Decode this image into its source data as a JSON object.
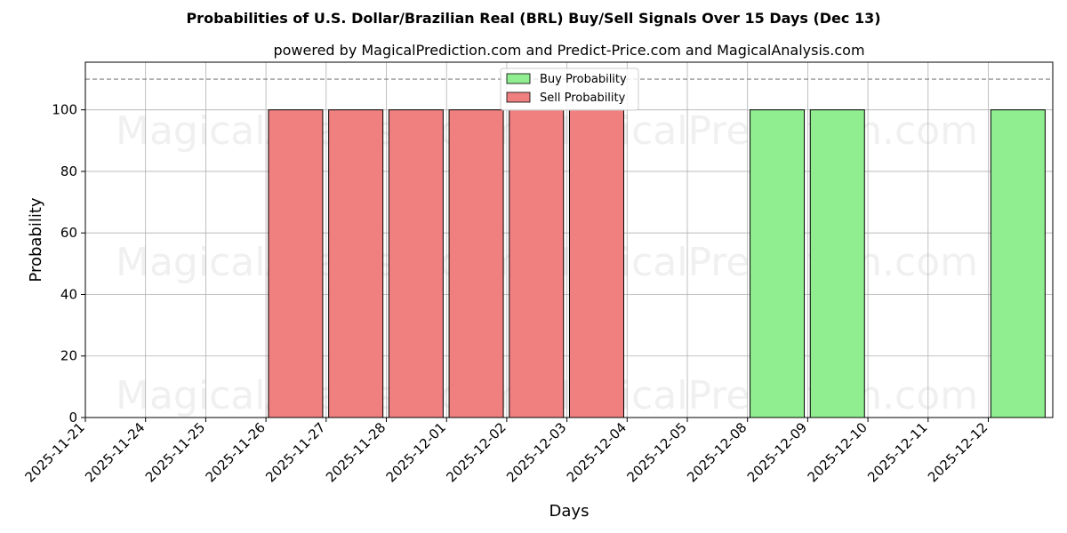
{
  "chart_data": {
    "type": "bar",
    "title": "Probabilities of U.S. Dollar/Brazilian Real (BRL) Buy/Sell Signals Over 15 Days (Dec 13)",
    "subtitle": "powered by MagicalPrediction.com and Predict-Price.com and MagicalAnalysis.com",
    "xlabel": "Days",
    "ylabel": "Probability",
    "ylim": [
      0,
      115.5
    ],
    "yticks": [
      0,
      20,
      40,
      60,
      80,
      100
    ],
    "threshold_line": 110,
    "grid": true,
    "legend_position": "top-center",
    "categories": [
      "2025-11-21",
      "2025-11-24",
      "2025-11-25",
      "2025-11-26",
      "2025-11-27",
      "2025-11-28",
      "2025-12-01",
      "2025-12-02",
      "2025-12-03",
      "2025-12-04",
      "2025-12-05",
      "2025-12-08",
      "2025-12-09",
      "2025-12-10",
      "2025-12-11",
      "2025-12-12"
    ],
    "series": [
      {
        "name": "Buy Probability",
        "color": "#90ee90",
        "values": [
          0,
          0,
          0,
          0,
          0,
          0,
          0,
          0,
          0,
          0,
          0,
          100,
          100,
          0,
          0,
          100
        ]
      },
      {
        "name": "Sell Probability",
        "color": "#f08080",
        "values": [
          0,
          0,
          0,
          100,
          100,
          100,
          100,
          100,
          100,
          0,
          0,
          0,
          0,
          0,
          0,
          0
        ]
      }
    ],
    "watermarks": [
      "MagicalAnalysis.com",
      "MagicalPrediction.com"
    ]
  }
}
